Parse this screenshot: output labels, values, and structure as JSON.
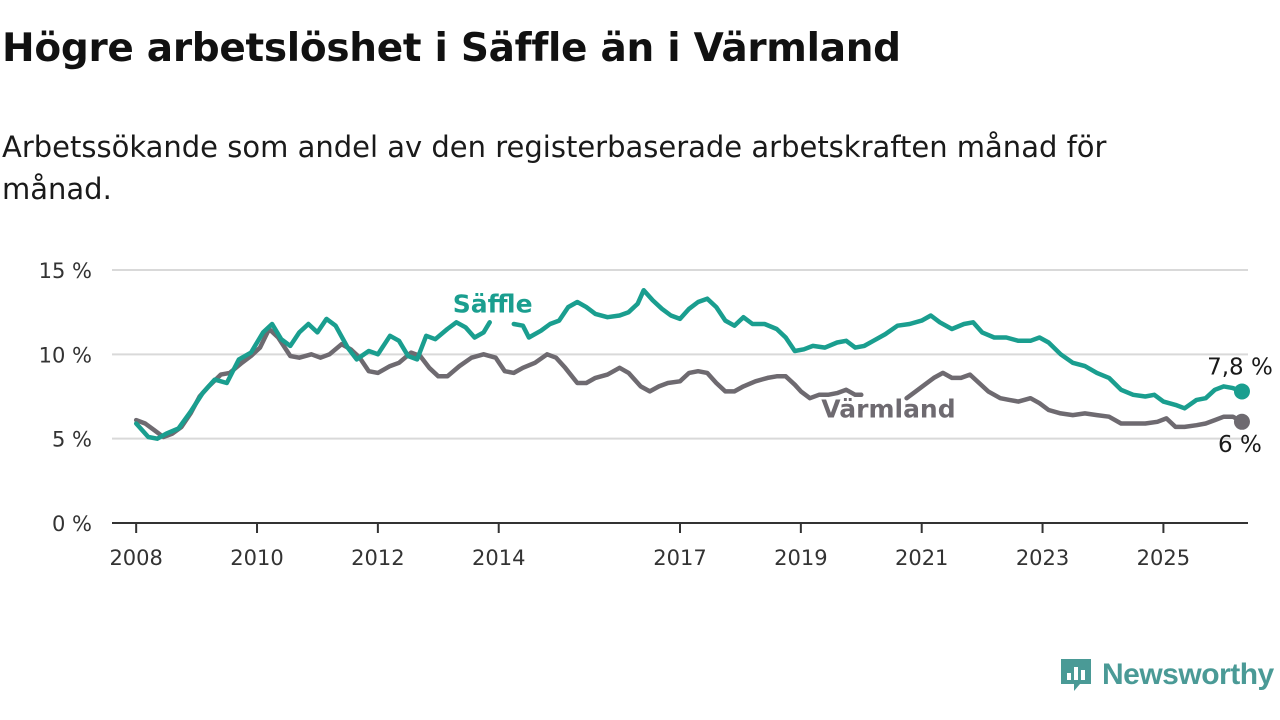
{
  "title": "Högre arbetslöshet i Säffle än i Värmland",
  "subtitle": "Arbetssökande som andel av den registerbaserade arbetskraften månad för månad.",
  "brand": {
    "name": "Newsworthy",
    "icon": "newsworthy-logo-icon",
    "color": "#4a9a96"
  },
  "colors": {
    "saffle": "#1a9e8f",
    "varmland": "#6e6a70",
    "grid": "#d9d9d9",
    "axis": "#333333"
  },
  "chart_data": {
    "type": "line",
    "ylim": [
      0,
      15
    ],
    "yticks": [
      {
        "value": 0,
        "label": "0 %"
      },
      {
        "value": 5,
        "label": "5 %"
      },
      {
        "value": 10,
        "label": "10 %"
      },
      {
        "value": 15,
        "label": "15 %"
      }
    ],
    "xlim": [
      2007.6,
      2026.4
    ],
    "xticks": [
      {
        "value": 2008,
        "label": "2008"
      },
      {
        "value": 2010,
        "label": "2010"
      },
      {
        "value": 2012,
        "label": "2012"
      },
      {
        "value": 2014,
        "label": "2014"
      },
      {
        "value": 2017,
        "label": "2017"
      },
      {
        "value": 2019,
        "label": "2019"
      },
      {
        "value": 2021,
        "label": "2021"
      },
      {
        "value": 2023,
        "label": "2023"
      },
      {
        "value": 2025,
        "label": "2025"
      }
    ],
    "grid": true,
    "series": [
      {
        "name": "Säffle",
        "color": "#1a9e8f",
        "end_label": "7,8 %",
        "points": [
          [
            2008.0,
            5.9
          ],
          [
            2008.2,
            5.1
          ],
          [
            2008.35,
            5.0
          ],
          [
            2008.5,
            5.3
          ],
          [
            2008.7,
            5.6
          ],
          [
            2008.9,
            6.6
          ],
          [
            2009.1,
            7.7
          ],
          [
            2009.3,
            8.5
          ],
          [
            2009.5,
            8.3
          ],
          [
            2009.7,
            9.7
          ],
          [
            2009.9,
            10.1
          ],
          [
            2010.1,
            11.3
          ],
          [
            2010.25,
            11.8
          ],
          [
            2010.4,
            10.9
          ],
          [
            2010.55,
            10.5
          ],
          [
            2010.7,
            11.3
          ],
          [
            2010.85,
            11.8
          ],
          [
            2011.0,
            11.3
          ],
          [
            2011.15,
            12.1
          ],
          [
            2011.3,
            11.7
          ],
          [
            2011.5,
            10.4
          ],
          [
            2011.65,
            9.7
          ],
          [
            2011.85,
            10.2
          ],
          [
            2012.0,
            10.0
          ],
          [
            2012.2,
            11.1
          ],
          [
            2012.35,
            10.8
          ],
          [
            2012.5,
            9.9
          ],
          [
            2012.65,
            9.7
          ],
          [
            2012.8,
            11.1
          ],
          [
            2012.95,
            10.9
          ],
          [
            2013.15,
            11.5
          ],
          [
            2013.3,
            11.9
          ],
          [
            2013.45,
            11.6
          ],
          [
            2013.6,
            11.0
          ],
          [
            2013.75,
            11.3
          ],
          [
            2013.85,
            11.9
          ],
          null,
          [
            2014.25,
            11.8
          ],
          [
            2014.4,
            11.7
          ],
          [
            2014.5,
            11.0
          ],
          [
            2014.7,
            11.4
          ],
          [
            2014.85,
            11.8
          ],
          [
            2015.0,
            12.0
          ],
          [
            2015.15,
            12.8
          ],
          [
            2015.3,
            13.1
          ],
          [
            2015.45,
            12.8
          ],
          [
            2015.6,
            12.4
          ],
          [
            2015.8,
            12.2
          ],
          [
            2016.0,
            12.3
          ],
          [
            2016.15,
            12.5
          ],
          [
            2016.3,
            13.0
          ],
          [
            2016.4,
            13.8
          ],
          [
            2016.55,
            13.2
          ],
          [
            2016.7,
            12.7
          ],
          [
            2016.85,
            12.3
          ],
          [
            2017.0,
            12.1
          ],
          [
            2017.15,
            12.7
          ],
          [
            2017.3,
            13.1
          ],
          [
            2017.45,
            13.3
          ],
          [
            2017.6,
            12.8
          ],
          [
            2017.75,
            12.0
          ],
          [
            2017.9,
            11.7
          ],
          [
            2018.05,
            12.2
          ],
          [
            2018.2,
            11.8
          ],
          [
            2018.4,
            11.8
          ],
          [
            2018.6,
            11.5
          ],
          [
            2018.75,
            11.0
          ],
          [
            2018.9,
            10.2
          ],
          [
            2019.05,
            10.3
          ],
          [
            2019.2,
            10.5
          ],
          [
            2019.4,
            10.4
          ],
          [
            2019.6,
            10.7
          ],
          [
            2019.75,
            10.8
          ],
          [
            2019.9,
            10.4
          ],
          [
            2020.05,
            10.5
          ],
          [
            2020.2,
            10.8
          ],
          [
            2020.4,
            11.2
          ],
          [
            2020.6,
            11.7
          ],
          [
            2020.8,
            11.8
          ],
          [
            2021.0,
            12.0
          ],
          [
            2021.15,
            12.3
          ],
          [
            2021.3,
            11.9
          ],
          [
            2021.5,
            11.5
          ],
          [
            2021.7,
            11.8
          ],
          [
            2021.85,
            11.9
          ],
          [
            2022.0,
            11.3
          ],
          [
            2022.2,
            11.0
          ],
          [
            2022.4,
            11.0
          ],
          [
            2022.6,
            10.8
          ],
          [
            2022.8,
            10.8
          ],
          [
            2022.95,
            11.0
          ],
          [
            2023.1,
            10.7
          ],
          [
            2023.3,
            10.0
          ],
          [
            2023.5,
            9.5
          ],
          [
            2023.7,
            9.3
          ],
          [
            2023.9,
            8.9
          ],
          [
            2024.1,
            8.6
          ],
          [
            2024.3,
            7.9
          ],
          [
            2024.5,
            7.6
          ],
          [
            2024.7,
            7.5
          ],
          [
            2024.85,
            7.6
          ],
          [
            2025.0,
            7.2
          ],
          [
            2025.2,
            7.0
          ],
          [
            2025.35,
            6.8
          ],
          [
            2025.55,
            7.3
          ],
          [
            2025.7,
            7.4
          ],
          [
            2025.85,
            7.9
          ],
          [
            2026.0,
            8.1
          ],
          [
            2026.15,
            8.0
          ],
          [
            2026.3,
            7.8
          ]
        ]
      },
      {
        "name": "Värmland",
        "color": "#6e6a70",
        "end_label": "6 %",
        "points": [
          [
            2008.0,
            6.1
          ],
          [
            2008.15,
            5.9
          ],
          [
            2008.3,
            5.5
          ],
          [
            2008.45,
            5.1
          ],
          [
            2008.6,
            5.3
          ],
          [
            2008.75,
            5.7
          ],
          [
            2008.9,
            6.5
          ],
          [
            2009.05,
            7.5
          ],
          [
            2009.2,
            8.1
          ],
          [
            2009.4,
            8.8
          ],
          [
            2009.55,
            8.9
          ],
          [
            2009.75,
            9.5
          ],
          [
            2009.9,
            9.9
          ],
          [
            2010.05,
            10.4
          ],
          [
            2010.2,
            11.5
          ],
          [
            2010.35,
            11.0
          ],
          [
            2010.55,
            9.9
          ],
          [
            2010.7,
            9.8
          ],
          [
            2010.9,
            10.0
          ],
          [
            2011.05,
            9.8
          ],
          [
            2011.2,
            10.0
          ],
          [
            2011.4,
            10.6
          ],
          [
            2011.55,
            10.3
          ],
          [
            2011.7,
            9.8
          ],
          [
            2011.85,
            9.0
          ],
          [
            2012.0,
            8.9
          ],
          [
            2012.2,
            9.3
          ],
          [
            2012.35,
            9.5
          ],
          [
            2012.55,
            10.1
          ],
          [
            2012.7,
            9.9
          ],
          [
            2012.85,
            9.2
          ],
          [
            2013.0,
            8.7
          ],
          [
            2013.15,
            8.7
          ],
          [
            2013.35,
            9.3
          ],
          [
            2013.55,
            9.8
          ],
          [
            2013.75,
            10.0
          ],
          [
            2013.95,
            9.8
          ],
          [
            2014.1,
            9.0
          ],
          [
            2014.25,
            8.9
          ],
          [
            2014.4,
            9.2
          ],
          [
            2014.6,
            9.5
          ],
          [
            2014.8,
            10.0
          ],
          [
            2014.95,
            9.8
          ],
          [
            2015.1,
            9.2
          ],
          [
            2015.3,
            8.3
          ],
          [
            2015.45,
            8.3
          ],
          [
            2015.6,
            8.6
          ],
          [
            2015.8,
            8.8
          ],
          [
            2016.0,
            9.2
          ],
          [
            2016.15,
            8.9
          ],
          [
            2016.35,
            8.1
          ],
          [
            2016.5,
            7.8
          ],
          [
            2016.65,
            8.1
          ],
          [
            2016.8,
            8.3
          ],
          [
            2017.0,
            8.4
          ],
          [
            2017.15,
            8.9
          ],
          [
            2017.3,
            9.0
          ],
          [
            2017.45,
            8.9
          ],
          [
            2017.6,
            8.3
          ],
          [
            2017.75,
            7.8
          ],
          [
            2017.9,
            7.8
          ],
          [
            2018.05,
            8.1
          ],
          [
            2018.25,
            8.4
          ],
          [
            2018.45,
            8.6
          ],
          [
            2018.6,
            8.7
          ],
          [
            2018.75,
            8.7
          ],
          [
            2018.9,
            8.2
          ],
          [
            2019.0,
            7.8
          ],
          [
            2019.15,
            7.4
          ],
          [
            2019.3,
            7.6
          ],
          [
            2019.45,
            7.6
          ],
          [
            2019.6,
            7.7
          ],
          [
            2019.75,
            7.9
          ],
          [
            2019.9,
            7.6
          ],
          [
            2020.0,
            7.6
          ],
          null,
          [
            2020.75,
            7.4
          ],
          [
            2020.9,
            7.8
          ],
          [
            2021.05,
            8.2
          ],
          [
            2021.2,
            8.6
          ],
          [
            2021.35,
            8.9
          ],
          [
            2021.5,
            8.6
          ],
          [
            2021.65,
            8.6
          ],
          [
            2021.8,
            8.8
          ],
          [
            2021.95,
            8.3
          ],
          [
            2022.1,
            7.8
          ],
          [
            2022.3,
            7.4
          ],
          [
            2022.45,
            7.3
          ],
          [
            2022.6,
            7.2
          ],
          [
            2022.8,
            7.4
          ],
          [
            2022.95,
            7.1
          ],
          [
            2023.1,
            6.7
          ],
          [
            2023.3,
            6.5
          ],
          [
            2023.5,
            6.4
          ],
          [
            2023.7,
            6.5
          ],
          [
            2023.9,
            6.4
          ],
          [
            2024.1,
            6.3
          ],
          [
            2024.3,
            5.9
          ],
          [
            2024.5,
            5.9
          ],
          [
            2024.7,
            5.9
          ],
          [
            2024.9,
            6.0
          ],
          [
            2025.05,
            6.2
          ],
          [
            2025.2,
            5.7
          ],
          [
            2025.35,
            5.7
          ],
          [
            2025.55,
            5.8
          ],
          [
            2025.7,
            5.9
          ],
          [
            2025.85,
            6.1
          ],
          [
            2026.0,
            6.3
          ],
          [
            2026.15,
            6.3
          ],
          [
            2026.3,
            6.0
          ]
        ]
      }
    ],
    "annotations": [
      {
        "text": "Säffle",
        "series": "Säffle"
      },
      {
        "text": "Värmland",
        "series": "Värmland"
      }
    ]
  }
}
